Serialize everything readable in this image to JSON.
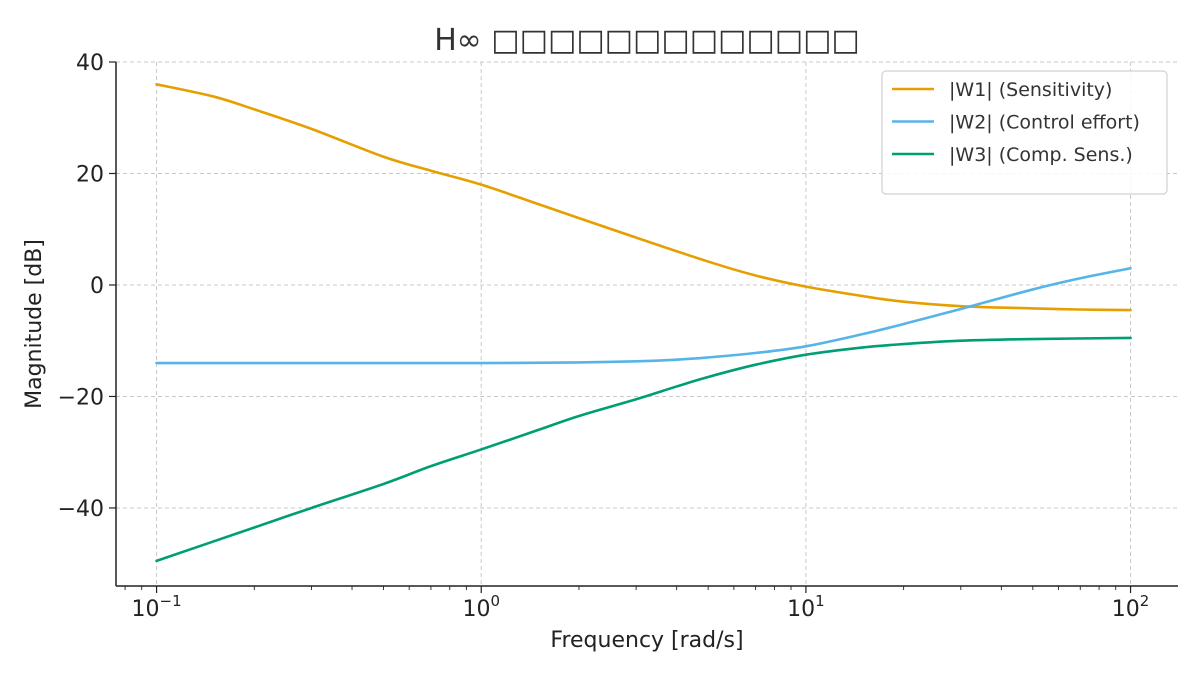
{
  "chart_data": {
    "type": "line",
    "title": "H∞ □□□□□□□□□□□□□",
    "xlabel": "Frequency [rad/s]",
    "ylabel": "Magnitude [dB]",
    "xscale": "log",
    "xlim": [
      0.075,
      140
    ],
    "ylim": [
      -54,
      40
    ],
    "xticks": [
      {
        "value": 0.1,
        "base": "10",
        "exp": "−1"
      },
      {
        "value": 1,
        "base": "10",
        "exp": "0"
      },
      {
        "value": 10,
        "base": "10",
        "exp": "1"
      },
      {
        "value": 100,
        "base": "10",
        "exp": "2"
      }
    ],
    "yticks": [
      {
        "value": 40,
        "label": "40"
      },
      {
        "value": 20,
        "label": "20"
      },
      {
        "value": 0,
        "label": "0"
      },
      {
        "value": -20,
        "label": "−20"
      },
      {
        "value": -40,
        "label": "−40"
      }
    ],
    "grid": true,
    "legend_position": "top-right",
    "series": [
      {
        "name": "|W1| (Sensitivity)",
        "color": "#E69F00",
        "x": [
          0.1,
          0.15,
          0.2,
          0.3,
          0.5,
          0.7,
          1,
          1.5,
          2,
          3,
          5,
          7,
          10,
          15,
          20,
          30,
          50,
          70,
          100
        ],
        "y": [
          36,
          33.8,
          31.5,
          28,
          23,
          20.5,
          18,
          14.5,
          12,
          8.5,
          4.2,
          1.7,
          -0.3,
          -2,
          -3,
          -3.8,
          -4.2,
          -4.4,
          -4.5
        ]
      },
      {
        "name": "|W2| (Control effort)",
        "color": "#56B4E9",
        "x": [
          0.1,
          0.3,
          0.5,
          1,
          2,
          3,
          4,
          5,
          7,
          10,
          15,
          20,
          30,
          50,
          70,
          100
        ],
        "y": [
          -14,
          -14,
          -14,
          -14,
          -13.9,
          -13.7,
          -13.4,
          -13,
          -12.2,
          -11,
          -8.8,
          -7,
          -4.3,
          -0.8,
          1.2,
          3
        ]
      },
      {
        "name": "|W3| (Comp. Sens.)",
        "color": "#009E73",
        "x": [
          0.1,
          0.2,
          0.3,
          0.5,
          0.7,
          1,
          1.5,
          2,
          3,
          4,
          5,
          7,
          10,
          15,
          20,
          30,
          50,
          100
        ],
        "y": [
          -49.5,
          -43.5,
          -40,
          -35.7,
          -32.5,
          -29.5,
          -26,
          -23.5,
          -20.5,
          -18.2,
          -16.5,
          -14.3,
          -12.5,
          -11.2,
          -10.6,
          -10,
          -9.7,
          -9.5
        ]
      }
    ]
  }
}
